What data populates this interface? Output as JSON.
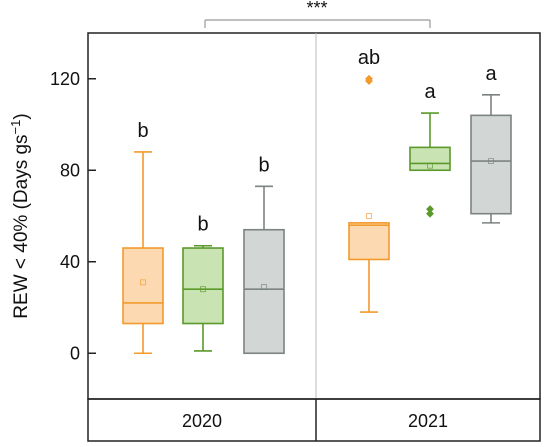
{
  "chart_data": {
    "type": "box",
    "ylabel_main": "REW < 40% (Days gs",
    "ylabel_sup": "−1",
    "ylabel_close": ")",
    "ylim": [
      -20,
      140
    ],
    "yticks": [
      0,
      40,
      80,
      120
    ],
    "ytick_labels": [
      "0",
      "40",
      "80",
      "120"
    ],
    "groups": [
      "2020",
      "2021"
    ],
    "significance": "***",
    "colors": {
      "orange_stroke": "#f39a2c",
      "orange_fill": "#fdd9b2",
      "green_stroke": "#5a9a2a",
      "green_fill": "#c9e3b3",
      "gray_stroke": "#7c8480",
      "gray_fill": "#d2d6d4"
    },
    "boxes": [
      {
        "group": "2020",
        "color": "orange",
        "min": 0,
        "q1": 13,
        "median": 22,
        "q3": 46,
        "max": 88,
        "mean": 31,
        "outliers": [],
        "letter": "b"
      },
      {
        "group": "2020",
        "color": "green",
        "min": 1,
        "q1": 13,
        "median": 28,
        "q3": 46,
        "max": 47,
        "mean": 28,
        "outliers": [],
        "letter": "b"
      },
      {
        "group": "2020",
        "color": "gray",
        "min": 0,
        "q1": 0,
        "median": 28,
        "q3": 54,
        "max": 73,
        "mean": 29,
        "outliers": [],
        "letter": "b"
      },
      {
        "group": "2021",
        "color": "orange",
        "min": 18,
        "q1": 41,
        "median": 56,
        "q3": 57,
        "max": 57,
        "mean": 60,
        "outliers": [
          119,
          120
        ],
        "letter": "ab"
      },
      {
        "group": "2021",
        "color": "green",
        "min": 80,
        "q1": 80,
        "median": 83,
        "q3": 90,
        "max": 105,
        "mean": 82,
        "outliers": [
          61,
          63
        ],
        "letter": "a"
      },
      {
        "group": "2021",
        "color": "gray",
        "min": 57,
        "q1": 61,
        "median": 84,
        "q3": 104,
        "max": 113,
        "mean": 84,
        "outliers": [],
        "letter": "a"
      }
    ]
  }
}
